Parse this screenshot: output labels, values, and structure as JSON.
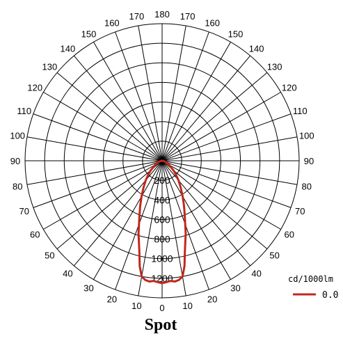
{
  "chart_data": {
    "type": "polar",
    "title": "Spot",
    "unit": "cd/1000lm",
    "radial_range": [
      0,
      1400
    ],
    "radial_ticks": [
      200,
      400,
      600,
      800,
      1000,
      1200
    ],
    "radial_tick_labels": [
      "200",
      "400",
      "600",
      "800",
      "1000",
      "1200"
    ],
    "angle_step_deg": 10,
    "angle_labels": {
      "right": [
        "0",
        "10",
        "20",
        "30",
        "40",
        "50",
        "60",
        "70",
        "80",
        "90",
        "100",
        "110",
        "120",
        "130",
        "140",
        "150",
        "160",
        "170",
        "180"
      ],
      "left": [
        "10",
        "20",
        "30",
        "40",
        "50",
        "60",
        "70",
        "80",
        "90",
        "100",
        "110",
        "120",
        "130",
        "140",
        "150",
        "160",
        "170"
      ]
    },
    "grid": true,
    "legend_position": "bottom-right",
    "series": [
      {
        "name": "0.0",
        "color": "#c0281e",
        "angles_deg": [
          0,
          2,
          4,
          6,
          8,
          10,
          12,
          14,
          16,
          18,
          20,
          22,
          24,
          26,
          28,
          30,
          35,
          40,
          45,
          50,
          60,
          70,
          80,
          90
        ],
        "values": [
          1250,
          1240,
          1230,
          1240,
          1230,
          1200,
          1100,
          960,
          860,
          780,
          690,
          620,
          560,
          510,
          460,
          420,
          330,
          260,
          200,
          150,
          80,
          40,
          15,
          0
        ]
      }
    ]
  }
}
